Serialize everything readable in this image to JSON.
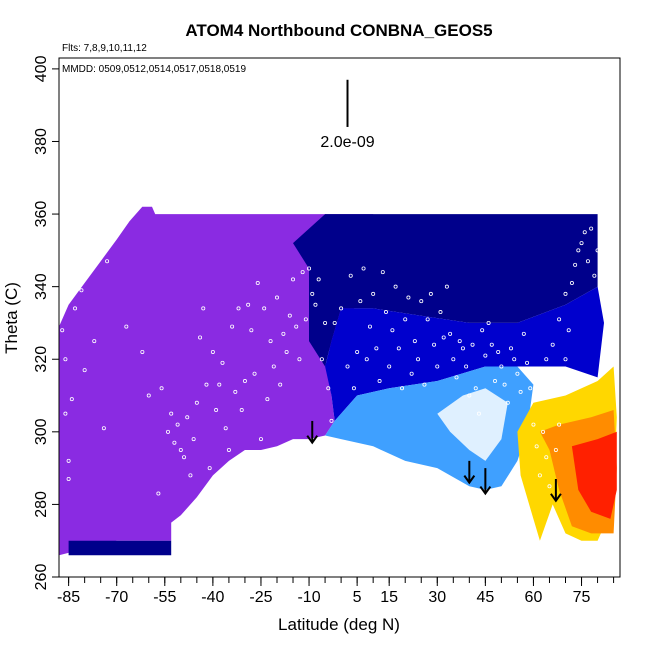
{
  "chart_data": {
    "type": "heatmap",
    "title": "ATOM4 Northbound CONBNA_GEOS5",
    "subtitle_flights": "Flts: 7,8,9,10,11,12",
    "subtitle_dates": "MMDD: 0509,0512,0514,0517,0518,0519",
    "xlabel": "Latitude (deg N)",
    "ylabel": "Theta (C)",
    "xlim": [
      -88,
      87
    ],
    "ylim": [
      260,
      403
    ],
    "x_ticks": [
      -85,
      -70,
      -55,
      -40,
      -25,
      -10,
      5,
      15,
      30,
      45,
      60,
      75
    ],
    "x_tick_labels": [
      "-85",
      "-70",
      "-55",
      "-40",
      "-25",
      "-10",
      "5",
      "15",
      "30",
      "45",
      "60",
      "75"
    ],
    "x_minor_step": 5,
    "y_ticks": [
      260,
      280,
      300,
      320,
      340,
      360,
      380,
      400
    ],
    "y_tick_labels": [
      "260",
      "280",
      "300",
      "320",
      "340",
      "360",
      "380",
      "400"
    ],
    "scale_bar_label": "2.0e-09",
    "scale_bar": {
      "x": 2,
      "y_top": 397,
      "y_bottom": 384
    },
    "colors": {
      "purple": "#8a2be2",
      "navy": "#00008b",
      "blue": "#0000cd",
      "light_blue": "#3fa0ff",
      "pale": "#dff0ff",
      "yellow": "#ffd700",
      "orange": "#ff8c00",
      "red": "#ff2000",
      "sample_marker": "#ffffff",
      "arrow": "#000000"
    },
    "field_regions": [
      {
        "name": "southern-high",
        "color": "purple",
        "polygon": [
          [
            -88,
            270
          ],
          [
            -88,
            329
          ],
          [
            -85,
            335
          ],
          [
            -80,
            341
          ],
          [
            -75,
            347
          ],
          [
            -70,
            353
          ],
          [
            -66,
            358
          ],
          [
            -62,
            362
          ],
          [
            -59,
            362
          ],
          [
            -58,
            360
          ],
          [
            -45,
            360
          ],
          [
            -30,
            360
          ],
          [
            -10,
            360
          ],
          [
            5,
            360
          ],
          [
            10,
            360
          ],
          [
            10,
            340
          ],
          [
            0,
            330
          ],
          [
            -5,
            320
          ],
          [
            -3,
            310
          ],
          [
            -2,
            303
          ],
          [
            -5,
            299
          ],
          [
            -10,
            298
          ],
          [
            -15,
            298
          ],
          [
            -20,
            296
          ],
          [
            -25,
            295
          ],
          [
            -30,
            295
          ],
          [
            -35,
            292
          ],
          [
            -40,
            288
          ],
          [
            -45,
            282
          ],
          [
            -50,
            277
          ],
          [
            -53,
            275
          ],
          [
            -53,
            270
          ],
          [
            -70,
            270
          ],
          [
            -88,
            266
          ]
        ]
      },
      {
        "name": "southern-low-navy",
        "color": "navy",
        "polygon": [
          [
            -85,
            270
          ],
          [
            -53,
            270
          ],
          [
            -53,
            266
          ],
          [
            -85,
            266
          ]
        ]
      },
      {
        "name": "tropical-upper",
        "color": "navy",
        "polygon": [
          [
            -5,
            360
          ],
          [
            25,
            360
          ],
          [
            45,
            360
          ],
          [
            70,
            360
          ],
          [
            80,
            360
          ],
          [
            80,
            340
          ],
          [
            70,
            335
          ],
          [
            55,
            330
          ],
          [
            40,
            330
          ],
          [
            25,
            332
          ],
          [
            10,
            334
          ],
          [
            0,
            334
          ],
          [
            -3,
            325
          ],
          [
            -5,
            318
          ],
          [
            -10,
            325
          ],
          [
            -10,
            345
          ],
          [
            -15,
            352
          ]
        ]
      },
      {
        "name": "mid-latitude",
        "color": "blue",
        "polygon": [
          [
            0,
            334
          ],
          [
            10,
            334
          ],
          [
            25,
            332
          ],
          [
            40,
            330
          ],
          [
            55,
            330
          ],
          [
            70,
            335
          ],
          [
            80,
            340
          ],
          [
            82,
            330
          ],
          [
            80,
            315
          ],
          [
            70,
            318
          ],
          [
            55,
            318
          ],
          [
            45,
            318
          ],
          [
            30,
            314
          ],
          [
            15,
            312
          ],
          [
            5,
            310
          ],
          [
            -2,
            303
          ],
          [
            -3,
            310
          ],
          [
            -5,
            318
          ],
          [
            -3,
            325
          ]
        ]
      },
      {
        "name": "lower-tropical",
        "color": "light_blue",
        "polygon": [
          [
            -2,
            303
          ],
          [
            5,
            310
          ],
          [
            15,
            312
          ],
          [
            30,
            314
          ],
          [
            45,
            318
          ],
          [
            55,
            318
          ],
          [
            60,
            313
          ],
          [
            58,
            300
          ],
          [
            55,
            292
          ],
          [
            50,
            285
          ],
          [
            45,
            284
          ],
          [
            40,
            285
          ],
          [
            30,
            290
          ],
          [
            20,
            292
          ],
          [
            10,
            296
          ],
          [
            0,
            298
          ],
          [
            -5,
            299
          ]
        ]
      },
      {
        "name": "pale-band",
        "color": "pale",
        "polygon": [
          [
            30,
            305
          ],
          [
            38,
            310
          ],
          [
            45,
            312
          ],
          [
            52,
            308
          ],
          [
            50,
            298
          ],
          [
            45,
            292
          ],
          [
            40,
            295
          ],
          [
            34,
            300
          ]
        ]
      },
      {
        "name": "arctic-warm",
        "color": "yellow",
        "polygon": [
          [
            55,
            300
          ],
          [
            60,
            308
          ],
          [
            70,
            310
          ],
          [
            80,
            314
          ],
          [
            85,
            318
          ],
          [
            86,
            304
          ],
          [
            85,
            280
          ],
          [
            80,
            270
          ],
          [
            75,
            270
          ],
          [
            70,
            272
          ],
          [
            66,
            280
          ],
          [
            62,
            270
          ],
          [
            60,
            276
          ],
          [
            56,
            288
          ]
        ]
      },
      {
        "name": "arctic-orange",
        "color": "orange",
        "polygon": [
          [
            62,
            300
          ],
          [
            68,
            302
          ],
          [
            78,
            304
          ],
          [
            85,
            306
          ],
          [
            86,
            290
          ],
          [
            85,
            272
          ],
          [
            78,
            272
          ],
          [
            72,
            274
          ],
          [
            68,
            284
          ],
          [
            65,
            295
          ]
        ]
      },
      {
        "name": "arctic-red",
        "color": "red",
        "polygon": [
          [
            72,
            296
          ],
          [
            80,
            298
          ],
          [
            86,
            300
          ],
          [
            86,
            284
          ],
          [
            84,
            276
          ],
          [
            78,
            278
          ],
          [
            74,
            284
          ]
        ]
      }
    ],
    "arrows": [
      {
        "x": -9,
        "y_top": 303,
        "y_bottom": 297
      },
      {
        "x": 40,
        "y_top": 292,
        "y_bottom": 286
      },
      {
        "x": 45,
        "y_top": 290,
        "y_bottom": 283
      },
      {
        "x": 67,
        "y_top": 287,
        "y_bottom": 281
      }
    ],
    "sample_points": [
      [
        -87,
        328
      ],
      [
        -86,
        320
      ],
      [
        -86,
        305
      ],
      [
        -85,
        292
      ],
      [
        -85,
        287
      ],
      [
        -84,
        309
      ],
      [
        -83,
        334
      ],
      [
        -81,
        339
      ],
      [
        -80,
        317
      ],
      [
        -79,
        345
      ],
      [
        -77,
        325
      ],
      [
        -76,
        351
      ],
      [
        -74,
        301
      ],
      [
        -73,
        347
      ],
      [
        -71,
        356
      ],
      [
        -69,
        359
      ],
      [
        -67,
        329
      ],
      [
        -65,
        361
      ],
      [
        -62,
        322
      ],
      [
        -60,
        310
      ],
      [
        -57,
        283
      ],
      [
        -56,
        312
      ],
      [
        -54,
        300
      ],
      [
        -53,
        305
      ],
      [
        -52,
        297
      ],
      [
        -51,
        302
      ],
      [
        -50,
        295
      ],
      [
        -49,
        293
      ],
      [
        -48,
        304
      ],
      [
        -47,
        288
      ],
      [
        -46,
        298
      ],
      [
        -45,
        308
      ],
      [
        -44,
        326
      ],
      [
        -43,
        334
      ],
      [
        -42,
        313
      ],
      [
        -41,
        290
      ],
      [
        -40,
        322
      ],
      [
        -39,
        306
      ],
      [
        -38,
        313
      ],
      [
        -37,
        319
      ],
      [
        -36,
        301
      ],
      [
        -35,
        295
      ],
      [
        -34,
        329
      ],
      [
        -33,
        311
      ],
      [
        -32,
        334
      ],
      [
        -31,
        306
      ],
      [
        -30,
        314
      ],
      [
        -29,
        335
      ],
      [
        -28,
        328
      ],
      [
        -27,
        316
      ],
      [
        -26,
        341
      ],
      [
        -25,
        298
      ],
      [
        -24,
        334
      ],
      [
        -23,
        309
      ],
      [
        -22,
        325
      ],
      [
        -21,
        318
      ],
      [
        -20,
        337
      ],
      [
        -19,
        313
      ],
      [
        -18,
        327
      ],
      [
        -17,
        322
      ],
      [
        -16,
        332
      ],
      [
        -15,
        342
      ],
      [
        -14,
        329
      ],
      [
        -13,
        320
      ],
      [
        -12,
        344
      ],
      [
        -11,
        331
      ],
      [
        -10,
        345
      ],
      [
        -9,
        338
      ],
      [
        -8,
        335
      ],
      [
        -7,
        342
      ],
      [
        -6,
        320
      ],
      [
        -5,
        330
      ],
      [
        -4,
        312
      ],
      [
        -3,
        303
      ],
      [
        -2,
        330
      ],
      [
        0,
        334
      ],
      [
        2,
        318
      ],
      [
        3,
        343
      ],
      [
        4,
        312
      ],
      [
        5,
        322
      ],
      [
        6,
        336
      ],
      [
        7,
        345
      ],
      [
        8,
        320
      ],
      [
        9,
        329
      ],
      [
        10,
        338
      ],
      [
        11,
        323
      ],
      [
        12,
        314
      ],
      [
        13,
        344
      ],
      [
        14,
        333
      ],
      [
        15,
        318
      ],
      [
        16,
        328
      ],
      [
        17,
        340
      ],
      [
        18,
        323
      ],
      [
        19,
        312
      ],
      [
        20,
        331
      ],
      [
        21,
        337
      ],
      [
        22,
        316
      ],
      [
        23,
        325
      ],
      [
        24,
        320
      ],
      [
        25,
        336
      ],
      [
        26,
        313
      ],
      [
        27,
        331
      ],
      [
        28,
        338
      ],
      [
        29,
        324
      ],
      [
        30,
        318
      ],
      [
        31,
        333
      ],
      [
        32,
        326
      ],
      [
        33,
        340
      ],
      [
        34,
        327
      ],
      [
        35,
        320
      ],
      [
        36,
        315
      ],
      [
        37,
        325
      ],
      [
        38,
        323
      ],
      [
        39,
        318
      ],
      [
        40,
        310
      ],
      [
        41,
        324
      ],
      [
        42,
        312
      ],
      [
        43,
        305
      ],
      [
        44,
        328
      ],
      [
        45,
        321
      ],
      [
        46,
        330
      ],
      [
        47,
        324
      ],
      [
        48,
        314
      ],
      [
        49,
        322
      ],
      [
        50,
        318
      ],
      [
        51,
        313
      ],
      [
        52,
        308
      ],
      [
        53,
        323
      ],
      [
        54,
        320
      ],
      [
        55,
        316
      ],
      [
        56,
        311
      ],
      [
        57,
        327
      ],
      [
        58,
        319
      ],
      [
        59,
        312
      ],
      [
        60,
        302
      ],
      [
        61,
        296
      ],
      [
        62,
        288
      ],
      [
        63,
        300
      ],
      [
        64,
        293
      ],
      [
        65,
        285
      ],
      [
        66,
        278
      ],
      [
        67,
        295
      ],
      [
        68,
        302
      ],
      [
        69,
        314
      ],
      [
        70,
        320
      ],
      [
        71,
        328
      ],
      [
        72,
        341
      ],
      [
        73,
        346
      ],
      [
        74,
        350
      ],
      [
        75,
        352
      ],
      [
        76,
        355
      ],
      [
        77,
        347
      ],
      [
        78,
        356
      ],
      [
        79,
        343
      ],
      [
        80,
        350
      ],
      [
        70,
        338
      ],
      [
        68,
        331
      ],
      [
        66,
        324
      ],
      [
        64,
        320
      ],
      [
        62,
        317
      ]
    ]
  }
}
